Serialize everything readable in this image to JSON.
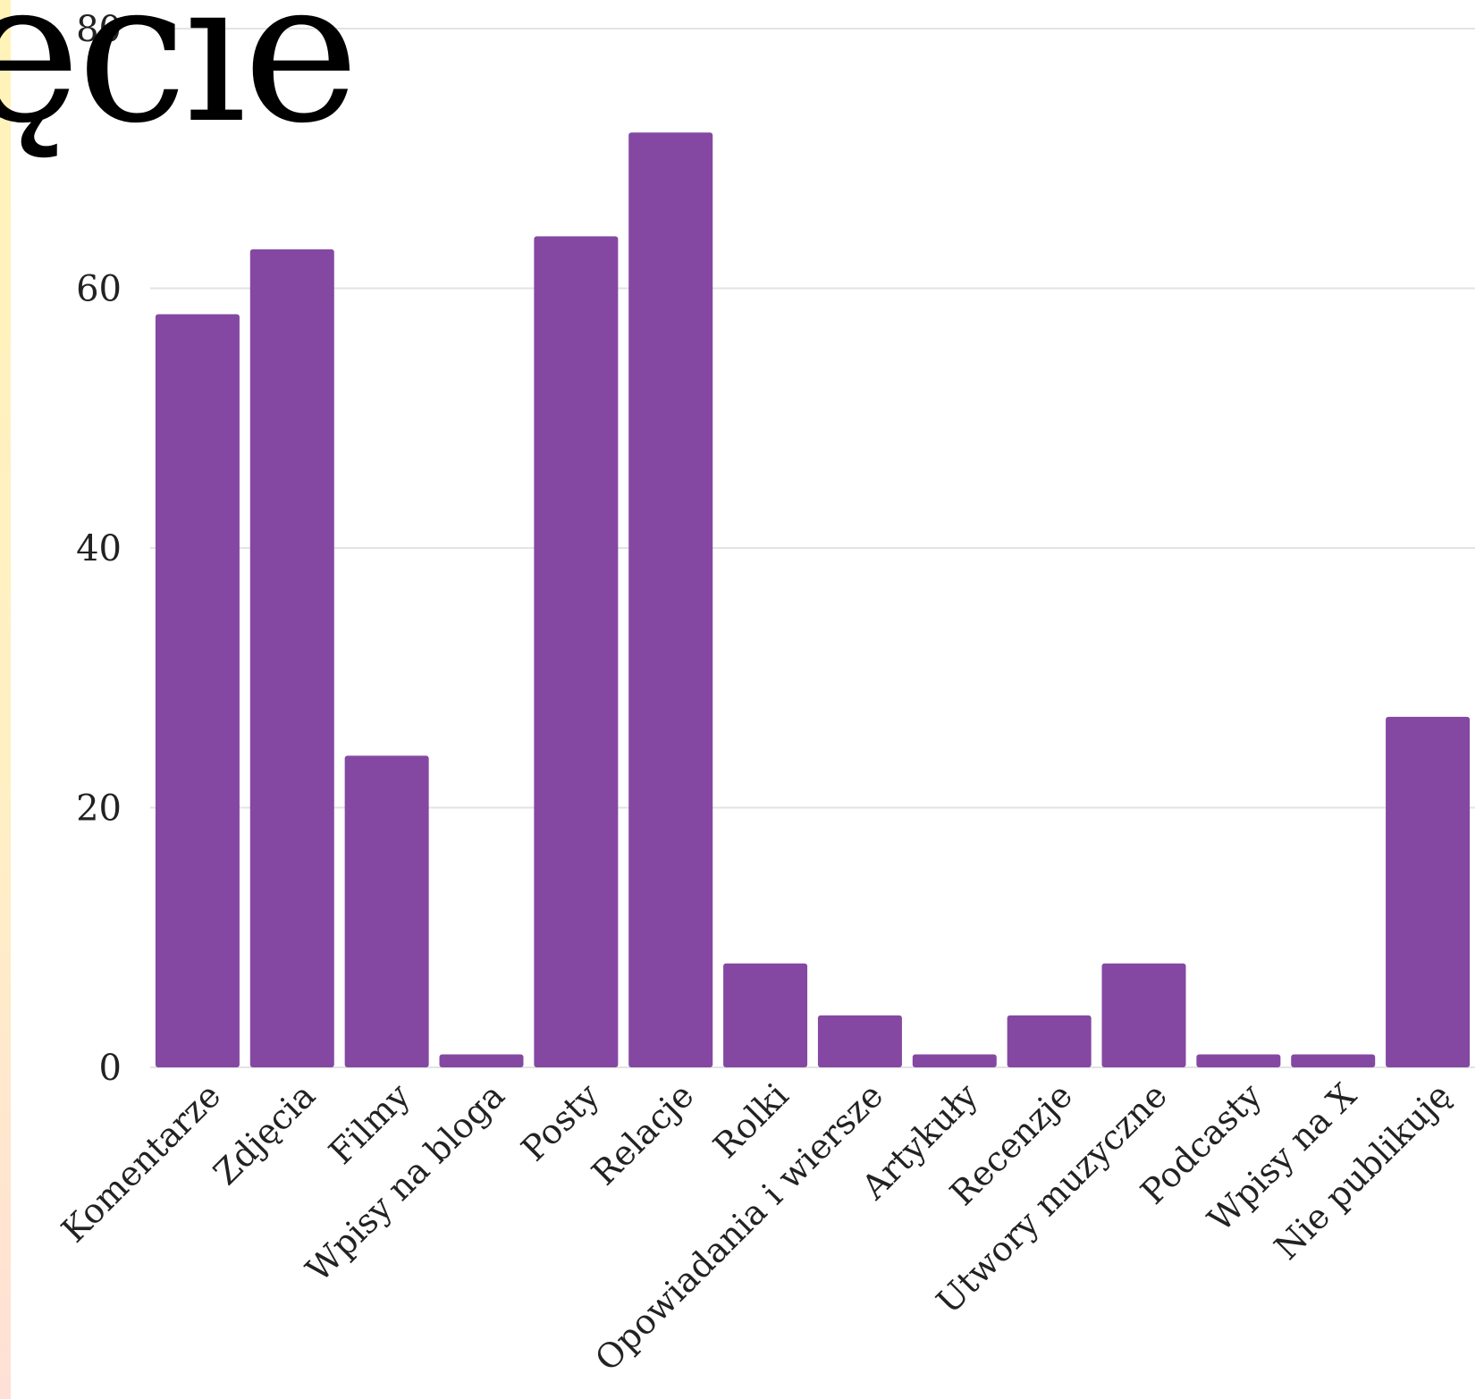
{
  "overlay_heading": "ęcie",
  "colors": {
    "bar": "#8448a2",
    "grid": "#e3e3e3",
    "text": "#222222"
  },
  "chart_data": {
    "type": "bar",
    "categories": [
      "Komentarze",
      "Zdjęcia",
      "Filmy",
      "Wpisy na bloga",
      "Posty",
      "Relacje",
      "Rolki",
      "Opowiadania i wiersze",
      "Artykuły",
      "Recenzje",
      "Utwory muzyczne",
      "Podcasty",
      "Wpisy na X",
      "Nie publikuję"
    ],
    "values": [
      58,
      63,
      24,
      1,
      64,
      72,
      8,
      4,
      1,
      4,
      8,
      1,
      1,
      27
    ],
    "ylim": [
      0,
      80
    ],
    "yticks": [
      0,
      20,
      40,
      60,
      80
    ],
    "title": "",
    "xlabel": "",
    "ylabel": "",
    "grid": true
  }
}
